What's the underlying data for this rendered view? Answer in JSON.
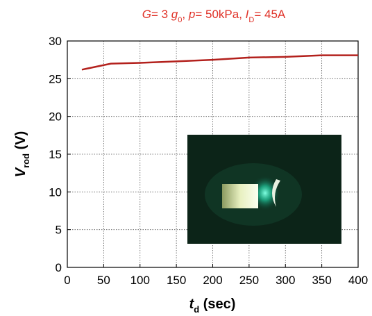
{
  "chart_data": {
    "type": "line",
    "title": [
      {
        "text": "G",
        "style": "italic"
      },
      {
        "text": "= 3 "
      },
      {
        "text": "g",
        "style": "italic"
      },
      {
        "text": "0",
        "style": "sub"
      },
      {
        "text": ", "
      },
      {
        "text": "p",
        "style": "italic"
      },
      {
        "text": "= 50kPa, "
      },
      {
        "text": "I",
        "style": "italic"
      },
      {
        "text": "D",
        "style": "sub"
      },
      {
        "text": "= 45A"
      }
    ],
    "x_label": [
      {
        "text": "t",
        "style": "italic"
      },
      {
        "text": "d",
        "style": "sub"
      },
      {
        "text": " (sec)"
      }
    ],
    "y_label": [
      {
        "text": "V",
        "style": "italic"
      },
      {
        "text": "rod",
        "style": "sub"
      },
      {
        "text": " (V)"
      }
    ],
    "x": [
      20,
      50,
      60,
      100,
      150,
      200,
      250,
      300,
      350,
      400
    ],
    "series": [
      {
        "color": "#b3201c",
        "values": [
          26.2,
          26.8,
          27.0,
          27.1,
          27.3,
          27.5,
          27.8,
          27.9,
          28.1,
          28.1
        ]
      }
    ],
    "xlim": [
      0,
      400
    ],
    "xticks": [
      0,
      50,
      100,
      150,
      200,
      250,
      300,
      350,
      400
    ],
    "ylim": [
      0,
      30
    ],
    "yticks": [
      0,
      5,
      10,
      15,
      20,
      25,
      30
    ],
    "grid": true
  }
}
